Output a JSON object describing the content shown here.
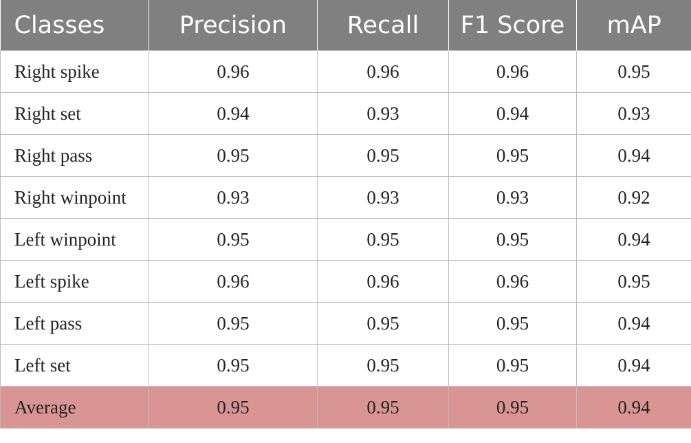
{
  "table": {
    "headers": [
      "Classes",
      "Precision",
      "Recall",
      "F1 Score",
      "mAP"
    ],
    "rows": [
      [
        "Right spike",
        "0.96",
        "0.96",
        "0.96",
        "0.95"
      ],
      [
        "Right set",
        "0.94",
        "0.93",
        "0.94",
        "0.93"
      ],
      [
        "Right pass",
        "0.95",
        "0.95",
        "0.95",
        "0.94"
      ],
      [
        "Right winpoint",
        "0.93",
        "0.93",
        "0.93",
        "0.92"
      ],
      [
        "Left winpoint",
        "0.95",
        "0.95",
        "0.95",
        "0.94"
      ],
      [
        "Left spike",
        "0.96",
        "0.96",
        "0.96",
        "0.95"
      ],
      [
        "Left pass",
        "0.95",
        "0.95",
        "0.95",
        "0.94"
      ],
      [
        "Left set",
        "0.95",
        "0.95",
        "0.95",
        "0.94"
      ],
      [
        "Average",
        "0.95",
        "0.95",
        "0.95",
        "0.94"
      ]
    ],
    "colors": {
      "header_background": "#808080",
      "header_text": "#ffffff",
      "average_row_background": "#d89593",
      "grid": "#bdbdbd"
    }
  }
}
